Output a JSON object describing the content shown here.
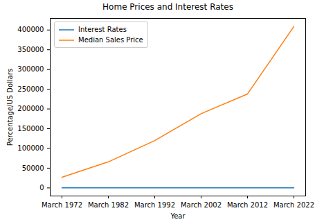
{
  "chart_data": {
    "type": "line",
    "title": "Home Prices and Interest Rates",
    "x_label": "Year",
    "y_label": "Percentage/US Dollars",
    "categories": [
      "March 1972",
      "March 1982",
      "March 1992",
      "March 2002",
      "March 2012",
      "March 2022"
    ],
    "series": [
      {
        "name": "Interest Rates",
        "color": "#1f77b4",
        "values": [
          7.3,
          17.5,
          8.7,
          6.9,
          3.9,
          4.2
        ]
      },
      {
        "name": "Median Sales Price",
        "color": "#ff7f0e",
        "values": [
          27000,
          66000,
          120000,
          188000,
          238000,
          409000
        ]
      }
    ],
    "ylim": [
      -20450,
      429450
    ],
    "yticks": [
      0,
      50000,
      100000,
      150000,
      200000,
      250000,
      300000,
      350000,
      400000
    ],
    "legend": "upper left",
    "grid": false
  }
}
